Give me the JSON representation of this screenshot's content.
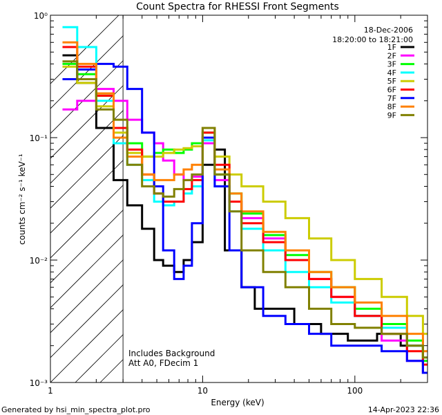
{
  "chart_data": {
    "type": "line",
    "title": "Count Spectra for RHESSI Front Segments",
    "xlabel": "Energy (keV)",
    "ylabel": "counts cm⁻² s⁻¹ keV⁻¹",
    "xscale": "log",
    "yscale": "log",
    "xlim": [
      1,
      300
    ],
    "ylim": [
      0.001,
      1
    ],
    "x_tick_labels": [
      {
        "v": 1,
        "label": "1"
      },
      {
        "v": 10,
        "label": "10"
      },
      {
        "v": 100,
        "label": "100"
      }
    ],
    "y_tick_labels": [
      {
        "v": 1,
        "label": "10⁰"
      },
      {
        "v": 0.1,
        "label": "10⁻¹"
      },
      {
        "v": 0.01,
        "label": "10⁻²"
      },
      {
        "v": 0.001,
        "label": "10⁻³"
      }
    ],
    "date": "18-Dec-2006",
    "time_range": "18:20:00 to 18:21:00",
    "annotations": [
      "Includes Background",
      "Att A0, FDecim 1"
    ],
    "hatched_region_max_kev": 3,
    "legend_position": "top-right",
    "series": [
      {
        "name": "1F",
        "color": "#000000",
        "points": [
          [
            1.2,
            0.47
          ],
          [
            1.5,
            0.28
          ],
          [
            2.0,
            0.12
          ],
          [
            2.6,
            0.045
          ],
          [
            3.2,
            0.028
          ],
          [
            4.0,
            0.018
          ],
          [
            4.8,
            0.01
          ],
          [
            5.5,
            0.009
          ],
          [
            6.5,
            0.008
          ],
          [
            7.5,
            0.01
          ],
          [
            8.5,
            0.014
          ],
          [
            10.0,
            0.06
          ],
          [
            12.0,
            0.08
          ],
          [
            14.0,
            0.012
          ],
          [
            18.0,
            0.006
          ],
          [
            22.0,
            0.004
          ],
          [
            30.0,
            0.004
          ],
          [
            40.0,
            0.003
          ],
          [
            60.0,
            0.0025
          ],
          [
            90.0,
            0.0022
          ],
          [
            140.0,
            0.0025
          ],
          [
            200.0,
            0.002
          ],
          [
            280.0,
            0.0012
          ]
        ]
      },
      {
        "name": "2F",
        "color": "#ff00ff",
        "points": [
          [
            1.2,
            0.17
          ],
          [
            1.5,
            0.2
          ],
          [
            2.0,
            0.25
          ],
          [
            2.6,
            0.2
          ],
          [
            3.2,
            0.14
          ],
          [
            4.0,
            0.11
          ],
          [
            4.8,
            0.09
          ],
          [
            5.5,
            0.065
          ],
          [
            6.5,
            0.05
          ],
          [
            7.5,
            0.045
          ],
          [
            8.5,
            0.048
          ],
          [
            10.0,
            0.09
          ],
          [
            12.0,
            0.045
          ],
          [
            15.0,
            0.03
          ],
          [
            18.0,
            0.022
          ],
          [
            25.0,
            0.015
          ],
          [
            35.0,
            0.01
          ],
          [
            50.0,
            0.007
          ],
          [
            70.0,
            0.005
          ],
          [
            100.0,
            0.0035
          ],
          [
            150.0,
            0.0022
          ],
          [
            220.0,
            0.0015
          ],
          [
            280.0,
            0.0012
          ]
        ]
      },
      {
        "name": "3F",
        "color": "#00ff00",
        "points": [
          [
            1.2,
            0.4
          ],
          [
            1.5,
            0.33
          ],
          [
            2.0,
            0.22
          ],
          [
            2.6,
            0.12
          ],
          [
            3.2,
            0.09
          ],
          [
            4.0,
            0.07
          ],
          [
            4.8,
            0.075
          ],
          [
            5.5,
            0.08
          ],
          [
            6.5,
            0.075
          ],
          [
            7.5,
            0.08
          ],
          [
            8.5,
            0.09
          ],
          [
            10.0,
            0.11
          ],
          [
            12.0,
            0.05
          ],
          [
            15.0,
            0.035
          ],
          [
            18.0,
            0.024
          ],
          [
            25.0,
            0.016
          ],
          [
            35.0,
            0.011
          ],
          [
            50.0,
            0.008
          ],
          [
            70.0,
            0.006
          ],
          [
            100.0,
            0.004
          ],
          [
            150.0,
            0.003
          ],
          [
            220.0,
            0.0022
          ],
          [
            280.0,
            0.0015
          ]
        ]
      },
      {
        "name": "4F",
        "color": "#00ffff",
        "points": [
          [
            1.2,
            0.8
          ],
          [
            1.5,
            0.55
          ],
          [
            2.0,
            0.2
          ],
          [
            2.6,
            0.09
          ],
          [
            3.2,
            0.06
          ],
          [
            4.0,
            0.045
          ],
          [
            4.8,
            0.03
          ],
          [
            5.5,
            0.028
          ],
          [
            6.5,
            0.03
          ],
          [
            7.5,
            0.035
          ],
          [
            8.5,
            0.04
          ],
          [
            10.0,
            0.095
          ],
          [
            12.0,
            0.04
          ],
          [
            15.0,
            0.025
          ],
          [
            18.0,
            0.018
          ],
          [
            25.0,
            0.012
          ],
          [
            35.0,
            0.008
          ],
          [
            50.0,
            0.006
          ],
          [
            70.0,
            0.0045
          ],
          [
            100.0,
            0.0035
          ],
          [
            150.0,
            0.0028
          ],
          [
            220.0,
            0.002
          ],
          [
            280.0,
            0.0016
          ]
        ]
      },
      {
        "name": "5F",
        "color": "#cccc00",
        "points": [
          [
            1.2,
            0.38
          ],
          [
            1.5,
            0.28
          ],
          [
            2.0,
            0.18
          ],
          [
            2.6,
            0.11
          ],
          [
            3.2,
            0.075
          ],
          [
            4.0,
            0.07
          ],
          [
            4.8,
            0.07
          ],
          [
            5.5,
            0.075
          ],
          [
            6.5,
            0.08
          ],
          [
            7.5,
            0.082
          ],
          [
            8.5,
            0.085
          ],
          [
            10.0,
            0.1
          ],
          [
            12.0,
            0.07
          ],
          [
            15.0,
            0.05
          ],
          [
            18.0,
            0.04
          ],
          [
            25.0,
            0.03
          ],
          [
            35.0,
            0.022
          ],
          [
            50.0,
            0.015
          ],
          [
            70.0,
            0.01
          ],
          [
            100.0,
            0.007
          ],
          [
            150.0,
            0.005
          ],
          [
            220.0,
            0.0035
          ],
          [
            280.0,
            0.0025
          ]
        ]
      },
      {
        "name": "6F",
        "color": "#ff0000",
        "points": [
          [
            1.2,
            0.55
          ],
          [
            1.5,
            0.38
          ],
          [
            2.0,
            0.22
          ],
          [
            2.6,
            0.12
          ],
          [
            3.2,
            0.08
          ],
          [
            4.0,
            0.05
          ],
          [
            4.8,
            0.035
          ],
          [
            5.5,
            0.03
          ],
          [
            6.5,
            0.03
          ],
          [
            7.5,
            0.038
          ],
          [
            8.5,
            0.045
          ],
          [
            10.0,
            0.11
          ],
          [
            12.0,
            0.06
          ],
          [
            15.0,
            0.03
          ],
          [
            18.0,
            0.02
          ],
          [
            25.0,
            0.014
          ],
          [
            35.0,
            0.01
          ],
          [
            50.0,
            0.007
          ],
          [
            70.0,
            0.005
          ],
          [
            100.0,
            0.0035
          ],
          [
            150.0,
            0.0025
          ],
          [
            220.0,
            0.0018
          ],
          [
            280.0,
            0.0014
          ]
        ]
      },
      {
        "name": "7F",
        "color": "#0000ff",
        "points": [
          [
            1.2,
            0.3
          ],
          [
            1.5,
            0.36
          ],
          [
            2.0,
            0.4
          ],
          [
            2.6,
            0.38
          ],
          [
            3.2,
            0.25
          ],
          [
            4.0,
            0.11
          ],
          [
            4.8,
            0.04
          ],
          [
            5.5,
            0.012
          ],
          [
            6.5,
            0.007
          ],
          [
            7.5,
            0.009
          ],
          [
            8.5,
            0.02
          ],
          [
            10.0,
            0.1
          ],
          [
            12.0,
            0.04
          ],
          [
            15.0,
            0.012
          ],
          [
            18.0,
            0.006
          ],
          [
            25.0,
            0.0035
          ],
          [
            35.0,
            0.003
          ],
          [
            50.0,
            0.0025
          ],
          [
            70.0,
            0.002
          ],
          [
            100.0,
            0.002
          ],
          [
            150.0,
            0.0018
          ],
          [
            220.0,
            0.0015
          ],
          [
            280.0,
            0.0012
          ]
        ]
      },
      {
        "name": "8F",
        "color": "#ff8000",
        "points": [
          [
            1.2,
            0.6
          ],
          [
            1.5,
            0.4
          ],
          [
            2.0,
            0.23
          ],
          [
            2.6,
            0.1
          ],
          [
            3.2,
            0.07
          ],
          [
            4.0,
            0.05
          ],
          [
            4.8,
            0.045
          ],
          [
            5.5,
            0.045
          ],
          [
            6.5,
            0.05
          ],
          [
            7.5,
            0.055
          ],
          [
            8.5,
            0.06
          ],
          [
            10.0,
            0.12
          ],
          [
            12.0,
            0.055
          ],
          [
            15.0,
            0.035
          ],
          [
            18.0,
            0.025
          ],
          [
            25.0,
            0.017
          ],
          [
            35.0,
            0.012
          ],
          [
            50.0,
            0.008
          ],
          [
            70.0,
            0.006
          ],
          [
            100.0,
            0.0045
          ],
          [
            150.0,
            0.0035
          ],
          [
            220.0,
            0.0025
          ],
          [
            280.0,
            0.0018
          ]
        ]
      },
      {
        "name": "9F",
        "color": "#808000",
        "points": [
          [
            1.2,
            0.42
          ],
          [
            1.5,
            0.3
          ],
          [
            2.0,
            0.17
          ],
          [
            2.6,
            0.14
          ],
          [
            3.2,
            0.06
          ],
          [
            4.0,
            0.04
          ],
          [
            4.8,
            0.035
          ],
          [
            5.5,
            0.033
          ],
          [
            6.5,
            0.038
          ],
          [
            7.5,
            0.045
          ],
          [
            8.5,
            0.05
          ],
          [
            10.0,
            0.12
          ],
          [
            12.0,
            0.05
          ],
          [
            15.0,
            0.025
          ],
          [
            18.0,
            0.012
          ],
          [
            25.0,
            0.008
          ],
          [
            35.0,
            0.006
          ],
          [
            50.0,
            0.004
          ],
          [
            70.0,
            0.003
          ],
          [
            100.0,
            0.0028
          ],
          [
            150.0,
            0.0025
          ],
          [
            220.0,
            0.002
          ],
          [
            280.0,
            0.0016
          ]
        ]
      }
    ]
  },
  "footer": {
    "left": "Generated by hsi_min_spectra_plot.pro",
    "right": "14-Apr-2023 22:36"
  }
}
